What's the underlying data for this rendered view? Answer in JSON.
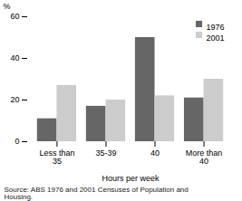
{
  "chart_data": {
    "type": "bar",
    "categories": [
      "Less than\n35",
      "35-39",
      "40",
      "More than\n40"
    ],
    "series": [
      {
        "name": "1976",
        "color": "#666666",
        "values": [
          11,
          17,
          50,
          21
        ]
      },
      {
        "name": "2001",
        "color": "#cccccc",
        "values": [
          27,
          20,
          22,
          30
        ]
      }
    ],
    "xlabel": "Hours per week",
    "ylabel": "%",
    "ylim": [
      0,
      60
    ],
    "yticks": [
      0,
      20,
      40,
      60
    ],
    "legend": "upper right",
    "caption": "Source: ABS 1976 and 2001 Censuses of Population and\nHousing."
  }
}
